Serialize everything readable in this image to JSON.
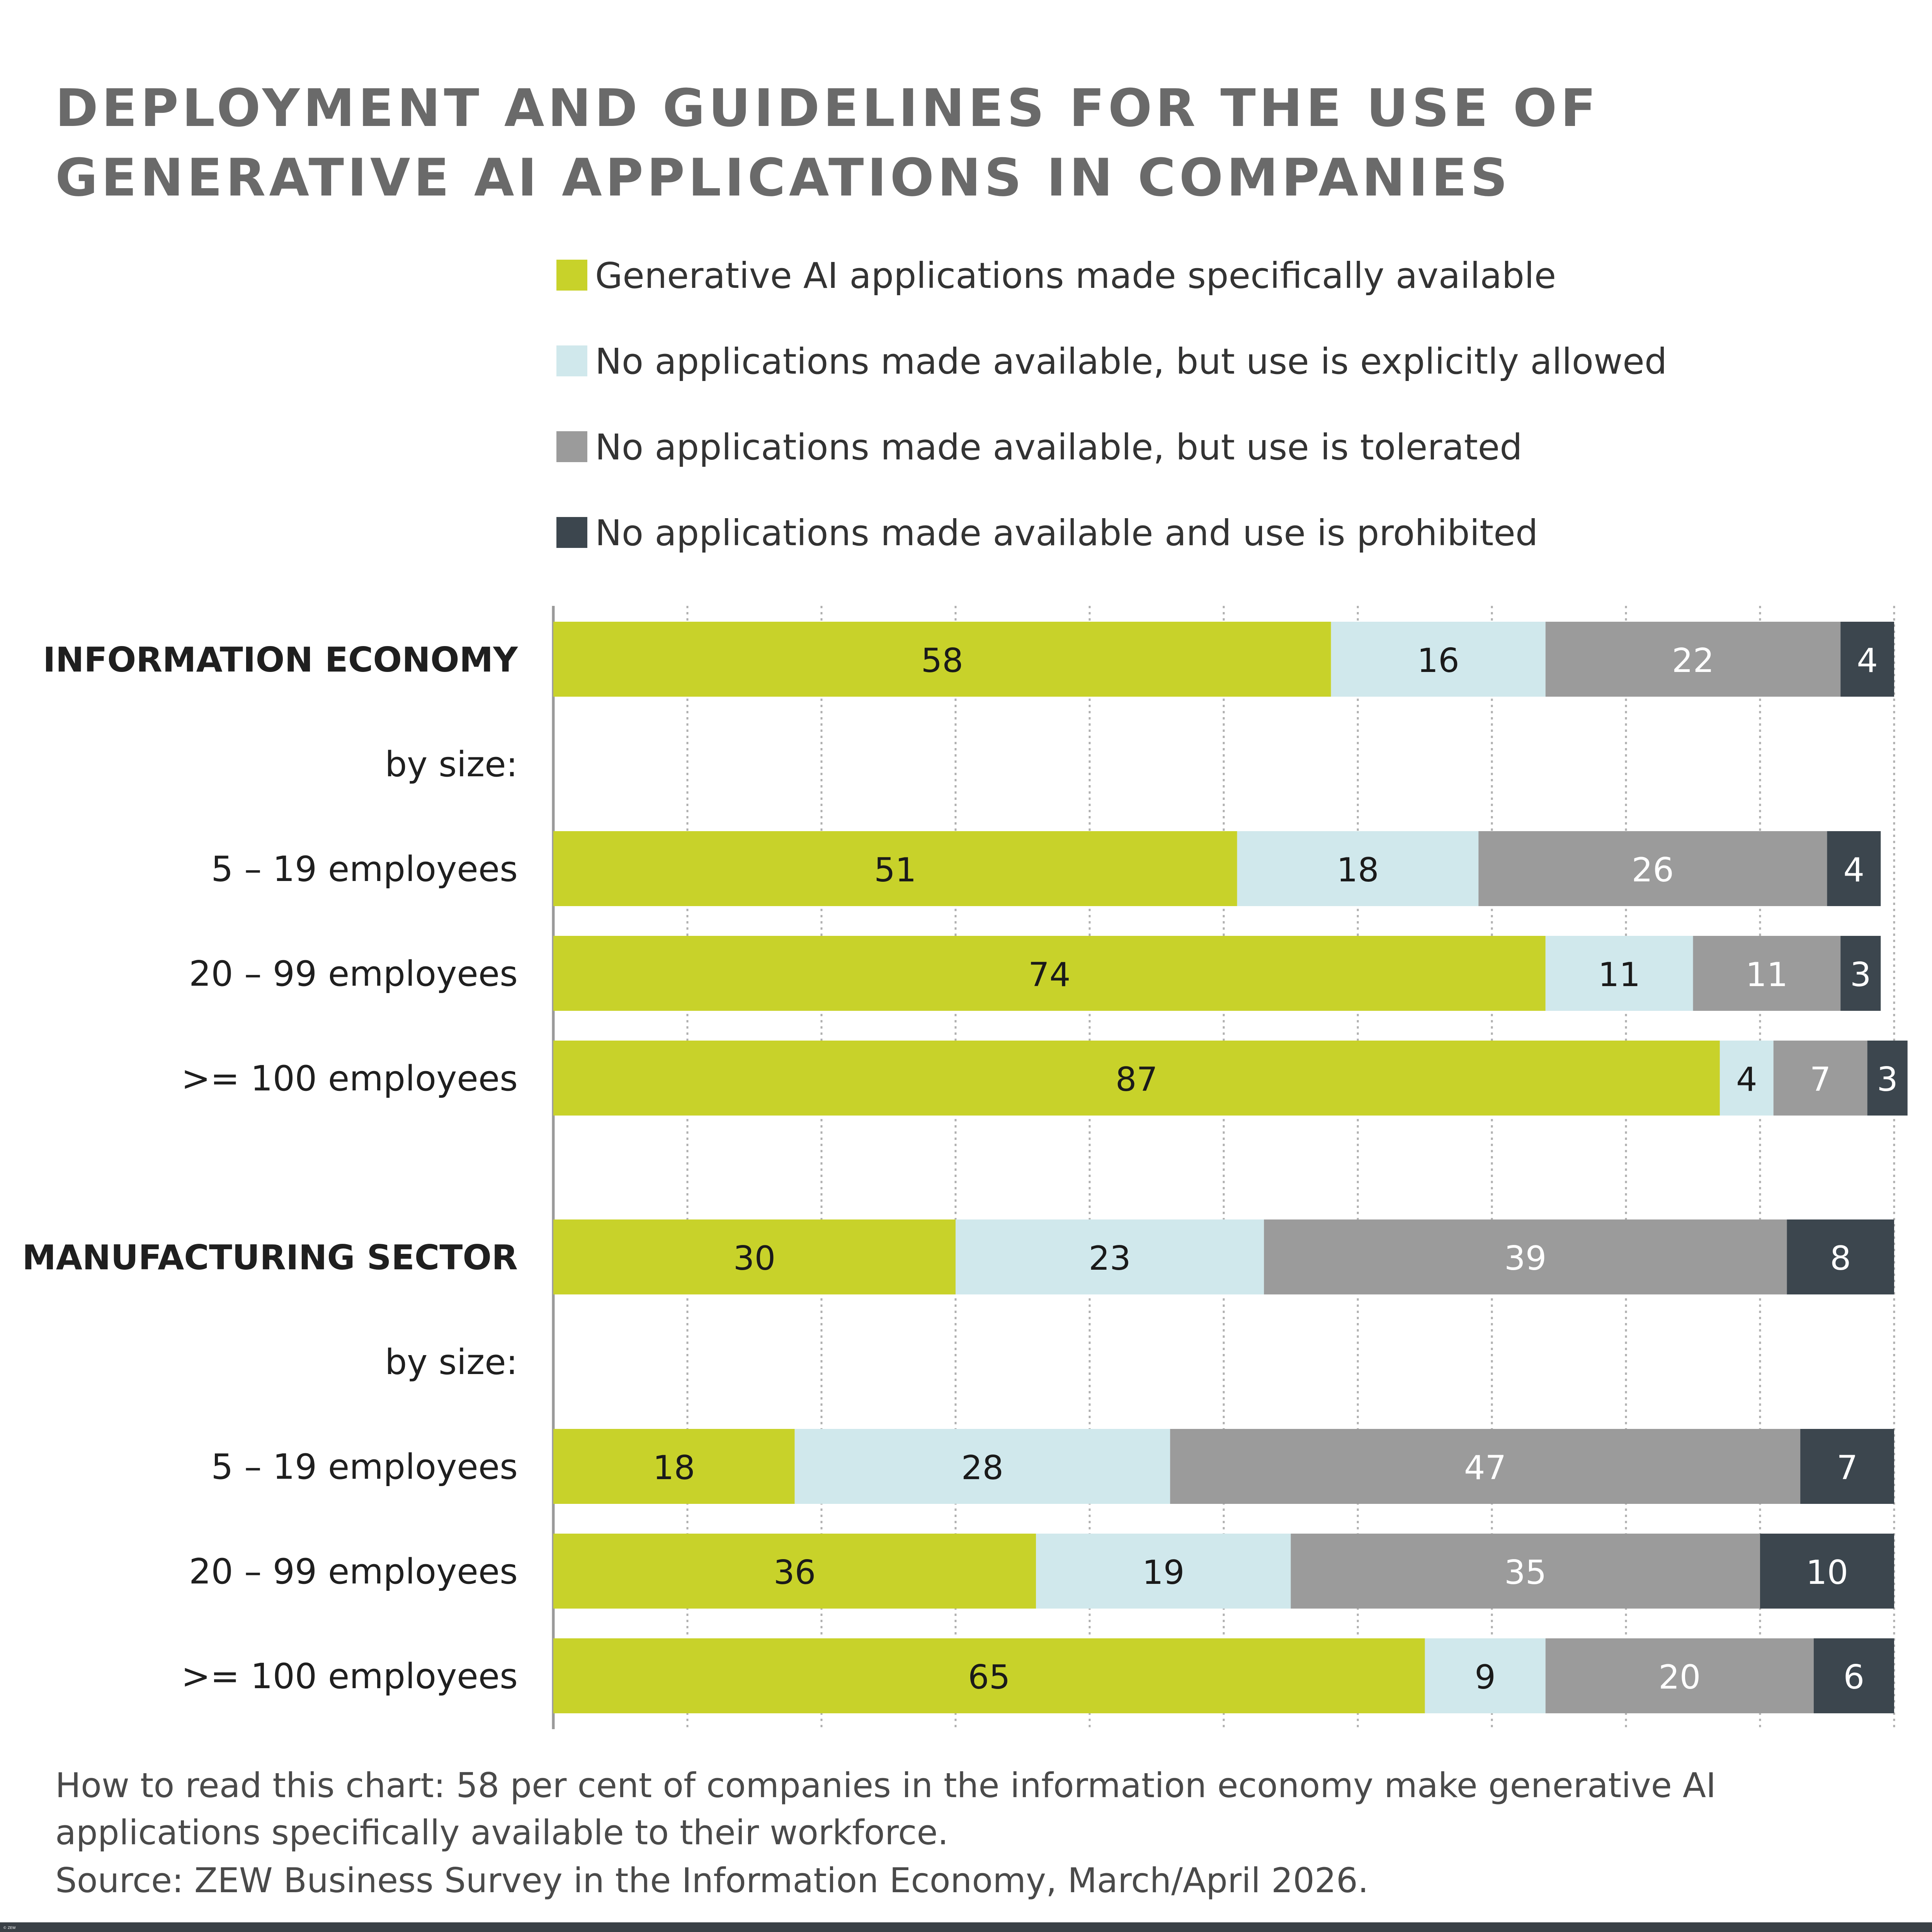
{
  "chart_data": {
    "type": "bar",
    "orientation": "horizontal",
    "stacked": true,
    "title": "DEPLOYMENT AND GUIDELINES FOR THE USE OF GENERATIVE AI APPLICATIONS IN COMPANIES",
    "xlim": [
      0,
      100
    ],
    "grid": true,
    "legend_position": "top",
    "rows": [
      {
        "label": "INFORMATION ECONOMY",
        "heading": true,
        "values": [
          58,
          16,
          22,
          4
        ]
      },
      {
        "label": "by size:",
        "values": null
      },
      {
        "label": "5 – 19 employees",
        "values": [
          51,
          18,
          26,
          4
        ]
      },
      {
        "label": "20 – 99 employees",
        "values": [
          74,
          11,
          11,
          3
        ]
      },
      {
        "label": ">= 100 employees",
        "values": [
          87,
          4,
          7,
          3
        ]
      },
      {
        "label": "MANUFACTURING SECTOR",
        "heading": true,
        "values": [
          30,
          23,
          39,
          8
        ]
      },
      {
        "label": "by size:",
        "values": null
      },
      {
        "label": "5 – 19 employees",
        "values": [
          18,
          28,
          47,
          7
        ]
      },
      {
        "label": "20 – 99 employees",
        "values": [
          36,
          19,
          35,
          10
        ]
      },
      {
        "label": ">= 100 employees",
        "values": [
          65,
          9,
          20,
          6
        ]
      }
    ],
    "series": [
      {
        "name": "Generative AI applications made specifically available",
        "color": "#c8d22a",
        "label_color": "#1a1a1a"
      },
      {
        "name": "No applications made available, but use is explicitly allowed",
        "color": "#d0e8ec",
        "label_color": "#1a1a1a"
      },
      {
        "name": "No applications made available, but use is tolerated",
        "color": "#9b9b9b",
        "label_color": "#ffffff"
      },
      {
        "name": "No applications made available and use is prohibited",
        "color": "#3c464e",
        "label_color": "#ffffff"
      }
    ]
  },
  "note": "How to read this chart: 58 per cent of companies in the information economy make generative AI applications specifically available to their workforce.",
  "source": "Source:  ZEW Business Survey in the Information Economy, March/April 2026.",
  "copyright": "© ZEW"
}
